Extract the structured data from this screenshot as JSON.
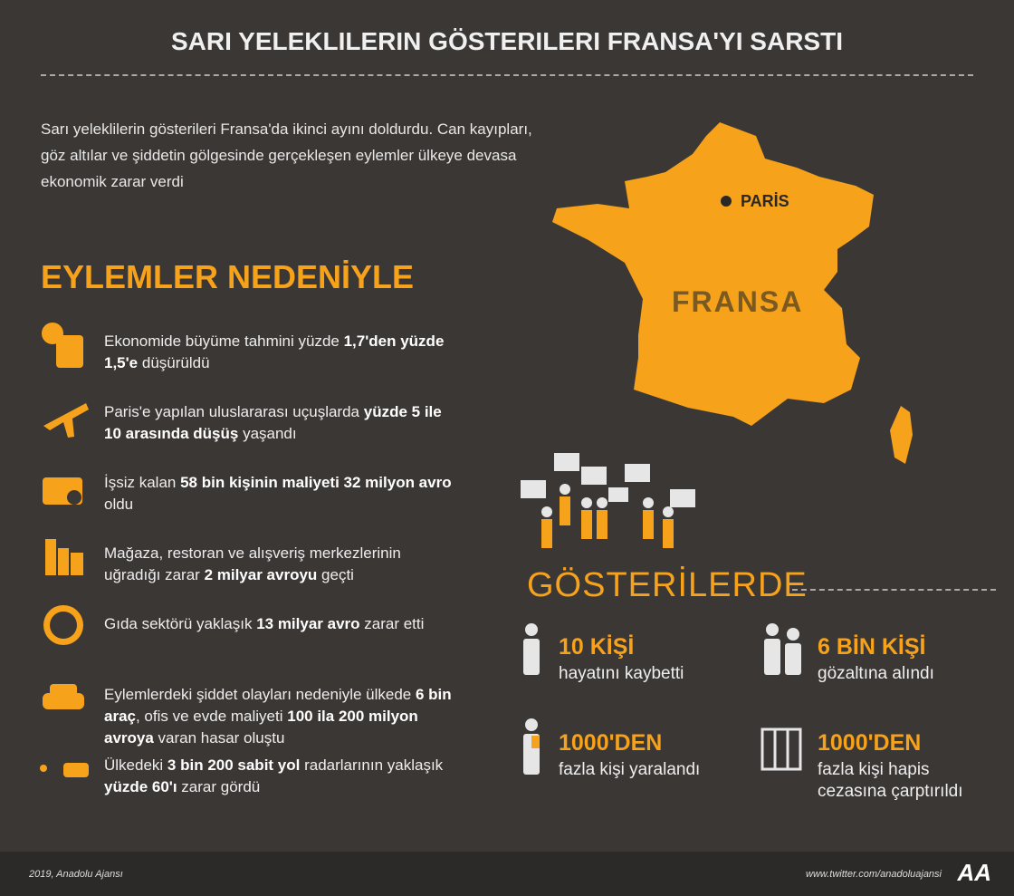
{
  "header": {
    "title": "SARI YELEKLILERIN GÖSTERILERI FRANSA'YI SARSTI"
  },
  "intro": "Sarı yeleklilerin gösterileri Fransa'da ikinci ayını doldurdu. Can kayıpları, göz altılar ve şiddetin gölgesinde gerçekleşen eylemler ülkeye devasa ekonomik zarar verdi",
  "section1": {
    "heading": "EYLEMLER NEDENİYLE",
    "items": [
      {
        "parts": [
          "Ekonomide büyüme tahmini yüzde ",
          "1,7'den yüzde 1,5'e",
          " düşürüldü"
        ]
      },
      {
        "parts": [
          "Paris'e yapılan uluslararası uçuşlarda ",
          "yüzde 5 ile 10 arasında düşüş",
          " yaşandı"
        ]
      },
      {
        "parts": [
          "İşsiz kalan ",
          "58 bin kişinin maliyeti 32 milyon avro",
          " oldu"
        ]
      },
      {
        "parts": [
          "Mağaza, restoran ve alışveriş merkezlerinin uğradığı zarar ",
          "2 milyar avroyu",
          " geçti"
        ]
      },
      {
        "parts": [
          "Gıda sektörü yaklaşık ",
          "13 milyar avro",
          " zarar etti"
        ]
      },
      {
        "parts": [
          "Eylemlerdeki şiddet olayları nedeniyle ülkede ",
          "6 bin araç",
          ", ofis ve evde maliyeti ",
          "100 ila 200 milyon avroya",
          " varan hasar oluştu"
        ]
      },
      {
        "parts": [
          "Ülkedeki ",
          "3 bin 200 sabit yol",
          " radarlarının yaklaşık ",
          "yüzde 60'ı",
          " zarar gördü"
        ]
      }
    ]
  },
  "map": {
    "city": "PARİS",
    "country": "FRANSA"
  },
  "section2": {
    "heading": "GÖSTERİLERDE",
    "stats": [
      {
        "value": "10 KİŞİ",
        "text": "hayatını kaybetti"
      },
      {
        "value": "6 BİN KİŞİ",
        "text": "gözaltına alındı"
      },
      {
        "value": "1000'DEN",
        "text": "fazla kişi yaralandı"
      },
      {
        "value": "1000'DEN",
        "text": "fazla kişi hapis cezasına çarptırıldı"
      }
    ]
  },
  "footer": {
    "credit": "2019, Anadolu Ajansı",
    "link": "www.twitter.com/anadoluajansi",
    "logo": "AA"
  }
}
